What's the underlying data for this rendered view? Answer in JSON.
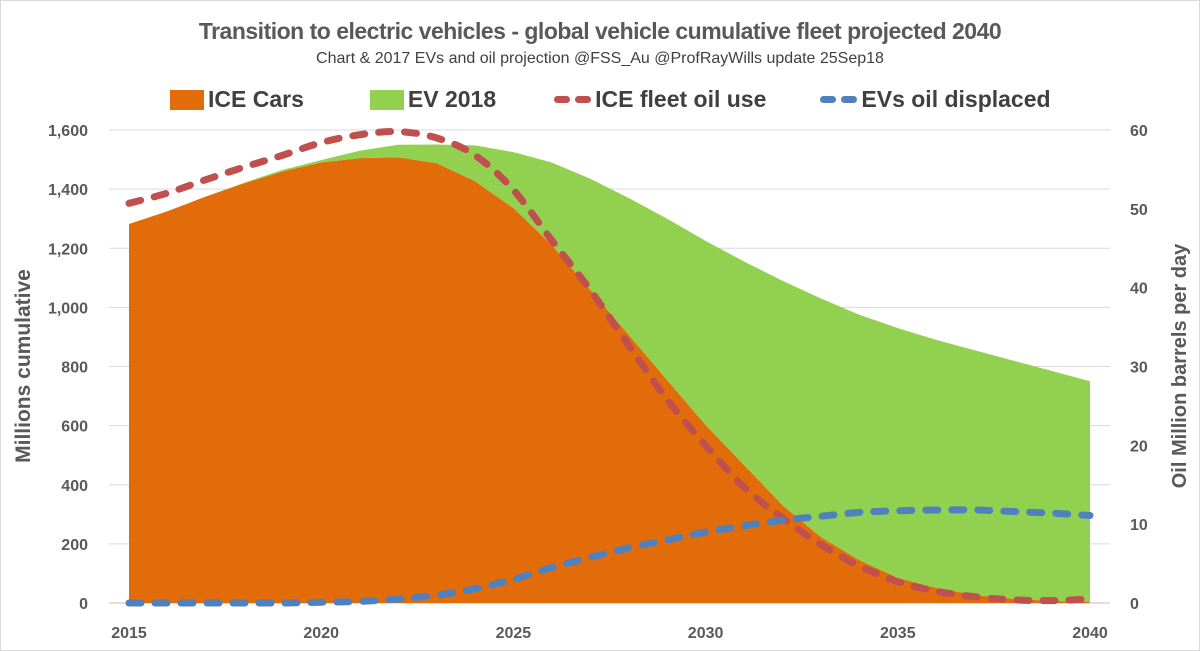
{
  "chart_data": {
    "type": "area",
    "title": "Transition to electric vehicles - global vehicle cumulative fleet projected 2040",
    "subtitle": "Chart & 2017 EVs and oil projection @FSS_Au @ProfRayWills  update 25Sep18",
    "ylabel": "Millions cumulative",
    "y2label": "Oil Million barrels per day",
    "xlim": [
      2015,
      2040
    ],
    "ylim": [
      0,
      1600
    ],
    "y2lim": [
      0,
      60
    ],
    "grid": true,
    "legend_placement": "top",
    "x_ticks": [
      "2015",
      "2020",
      "2025",
      "2030",
      "2035",
      "2040"
    ],
    "y_ticks": [
      "0",
      "200",
      "400",
      "600",
      "800",
      "1,000",
      "1,200",
      "1,400",
      "1,600"
    ],
    "y2_ticks": [
      "0",
      "10",
      "20",
      "30",
      "40",
      "50",
      "60"
    ],
    "x": [
      2015,
      2016,
      2017,
      2018,
      2019,
      2020,
      2021,
      2022,
      2023,
      2024,
      2025,
      2026,
      2027,
      2028,
      2029,
      2030,
      2031,
      2032,
      2033,
      2034,
      2035,
      2036,
      2037,
      2038,
      2039,
      2040
    ],
    "series": [
      {
        "name": "ICE Cars",
        "kind": "stacked-area",
        "axis": "left",
        "color": "#e36c0a",
        "values": [
          1282,
          1325,
          1375,
          1420,
          1460,
          1490,
          1505,
          1508,
          1488,
          1427,
          1336,
          1211,
          1059,
          907,
          754,
          602,
          467,
          331,
          223,
          145,
          85,
          51,
          27,
          14,
          7,
          3
        ]
      },
      {
        "name": "EV 2018",
        "kind": "stacked-area",
        "axis": "left",
        "color": "#92d050",
        "values": [
          0,
          0,
          0,
          2,
          5,
          8,
          25,
          42,
          63,
          121,
          189,
          279,
          376,
          463,
          546,
          623,
          688,
          759,
          807,
          830,
          845,
          839,
          828,
          806,
          778,
          747
        ]
      },
      {
        "name": "ICE fleet oil use",
        "kind": "dashed-line",
        "axis": "right",
        "color": "#c0504d",
        "values": [
          50.7,
          52,
          53.7,
          55.3,
          56.8,
          58.4,
          59.4,
          59.8,
          59,
          56.8,
          52.4,
          46,
          39.7,
          32.7,
          25.8,
          20,
          14.7,
          10.8,
          7.4,
          4.7,
          2.7,
          1.5,
          0.8,
          0.4,
          0.3,
          0.5
        ]
      },
      {
        "name": "EVs oil displaced",
        "kind": "dashed-line",
        "axis": "right",
        "color": "#4f81bd",
        "values": [
          0,
          0,
          0,
          0,
          0,
          0.1,
          0.2,
          0.5,
          1,
          1.8,
          3,
          4.5,
          5.8,
          7,
          8,
          9,
          9.8,
          10.5,
          11,
          11.5,
          11.7,
          11.8,
          11.8,
          11.6,
          11.4,
          11.1
        ]
      }
    ]
  }
}
